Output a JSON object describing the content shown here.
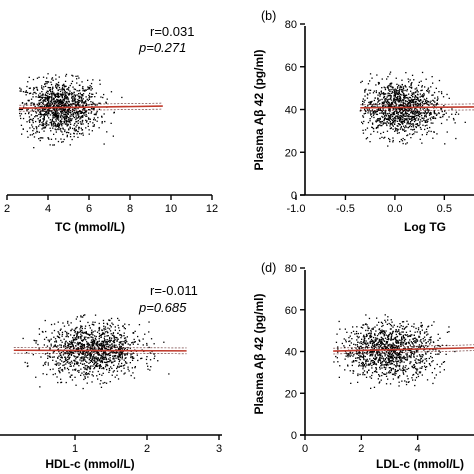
{
  "chart_data": [
    {
      "panel": "",
      "type": "scatter",
      "xlabel": "TC (mmol/L)",
      "ylabel": "",
      "xlim": [
        2,
        12
      ],
      "ylim": [
        0,
        80
      ],
      "xticks": [
        2,
        4,
        6,
        8,
        10,
        12
      ],
      "xtick_labels": [
        "2",
        "4",
        "6",
        "8",
        "10",
        "12"
      ],
      "yticks": [],
      "ytick_labels": [],
      "stat_r": "r=0.031",
      "stat_p": "p=0.271",
      "cloud": {
        "x_center": 4.6,
        "x_sd": 0.95,
        "x_min": 2.6,
        "x_max": 9.6,
        "y_center": 40.5,
        "y_sd": 6.5,
        "y_min": 22,
        "y_max": 58,
        "n": 1200
      },
      "fit": {
        "x": [
          2.6,
          9.6
        ],
        "y": [
          40.6,
          41.6
        ]
      }
    },
    {
      "panel": "(b)",
      "type": "scatter",
      "xlabel": "Log TG",
      "ylabel": "Plasma Aβ 42 (pg/ml)",
      "xlim": [
        -1.0,
        0.8
      ],
      "ylim": [
        0,
        80
      ],
      "xticks": [
        -1.0,
        -0.5,
        0.0,
        0.5
      ],
      "xtick_labels": [
        "-1.0",
        "-0.5",
        "0.0",
        "0.5"
      ],
      "yticks": [
        0,
        20,
        40,
        60,
        80
      ],
      "ytick_labels": [
        "0",
        "20",
        "40",
        "60",
        "80"
      ],
      "stat_r": "",
      "stat_p": "",
      "cloud": {
        "x_center": 0.05,
        "x_sd": 0.2,
        "x_min": -0.35,
        "x_max": 0.8,
        "y_center": 40.5,
        "y_sd": 6.5,
        "y_min": 22,
        "y_max": 58,
        "n": 1200
      },
      "fit": {
        "x": [
          -0.35,
          0.8
        ],
        "y": [
          40.8,
          41.2
        ]
      }
    },
    {
      "panel": "",
      "type": "scatter",
      "xlabel": "HDL-c (mmol/L)",
      "ylabel": "",
      "xlim": [
        0,
        3
      ],
      "ylim": [
        0,
        80
      ],
      "xticks": [
        1,
        2,
        3
      ],
      "xtick_labels": [
        "1",
        "2",
        "3"
      ],
      "yticks": [],
      "ytick_labels": [],
      "stat_r": "r=-0.011",
      "stat_p": "p=0.685",
      "cloud": {
        "x_center": 1.25,
        "x_sd": 0.33,
        "x_min": 0.15,
        "x_max": 2.55,
        "y_center": 40.5,
        "y_sd": 6.5,
        "y_min": 22,
        "y_max": 58,
        "n": 1200
      },
      "fit": {
        "x": [
          0.15,
          2.55
        ],
        "y": [
          40.6,
          40.3
        ]
      }
    },
    {
      "panel": "(d)",
      "type": "scatter",
      "xlabel": "LDL-c (mmol/L)",
      "ylabel": "Plasma Aβ 42 (pg/ml)",
      "xlim": [
        0,
        6
      ],
      "ylim": [
        0,
        80
      ],
      "xticks": [
        0,
        2,
        4
      ],
      "xtick_labels": [
        "0",
        "2",
        "4"
      ],
      "yticks": [
        0,
        20,
        40,
        60,
        80
      ],
      "ytick_labels": [
        "0",
        "20",
        "40",
        "60",
        "80"
      ],
      "stat_r": "",
      "stat_p": "",
      "cloud": {
        "x_center": 3.0,
        "x_sd": 0.85,
        "x_min": 1.0,
        "x_max": 6.0,
        "y_center": 40.5,
        "y_sd": 6.5,
        "y_min": 22,
        "y_max": 58,
        "n": 1200
      },
      "fit": {
        "x": [
          1.0,
          6.0
        ],
        "y": [
          40.2,
          41.8
        ]
      }
    }
  ]
}
